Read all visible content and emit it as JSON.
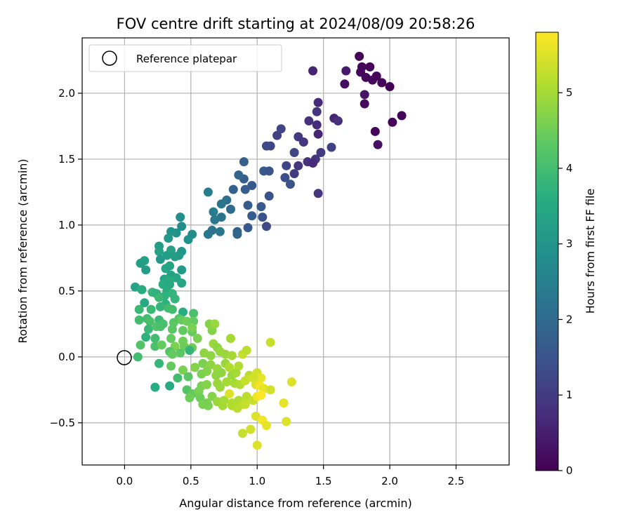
{
  "chart_data": {
    "type": "scatter",
    "title": "FOV centre drift starting at 2024/08/09 20:58:26",
    "xlabel": "Angular distance from reference (arcmin)",
    "ylabel": "Rotation from reference (arcmin)",
    "xlim": [
      -0.32,
      2.9
    ],
    "ylim": [
      -0.82,
      2.42
    ],
    "xticks": [
      0.0,
      0.5,
      1.0,
      1.5,
      2.0,
      2.5
    ],
    "xtick_labels": [
      "0.0",
      "0.5",
      "1.0",
      "1.5",
      "2.0",
      "2.5"
    ],
    "yticks": [
      -0.5,
      0.0,
      0.5,
      1.0,
      1.5,
      2.0
    ],
    "ytick_labels": [
      "−0.5",
      "0.0",
      "0.5",
      "1.0",
      "1.5",
      "2.0"
    ],
    "grid": true,
    "legend": {
      "placement": "upper-left",
      "entries": [
        {
          "label": "Reference platepar",
          "marker": "open-circle"
        }
      ]
    },
    "reference_point": {
      "x": 0.0,
      "y": 0.0
    },
    "colorbar": {
      "label": "Hours from first FF file",
      "colormap": "viridis",
      "range": [
        0,
        5.8
      ],
      "ticks": [
        0,
        1,
        2,
        3,
        4,
        5
      ],
      "tick_labels": [
        "0",
        "1",
        "2",
        "3",
        "4",
        "5"
      ]
    },
    "points": [
      [
        1.77,
        2.28,
        0.05
      ],
      [
        1.79,
        2.2,
        0.08
      ],
      [
        1.78,
        2.16,
        0.1
      ],
      [
        1.85,
        2.2,
        0.05
      ],
      [
        1.82,
        2.12,
        0.12
      ],
      [
        1.87,
        2.1,
        0.15
      ],
      [
        1.9,
        2.13,
        0.1
      ],
      [
        1.94,
        2.08,
        0.08
      ],
      [
        2.0,
        2.05,
        0.03
      ],
      [
        1.81,
        1.99,
        0.3
      ],
      [
        1.81,
        1.92,
        0.15
      ],
      [
        1.66,
        2.07,
        0.2
      ],
      [
        1.67,
        2.17,
        0.4
      ],
      [
        1.42,
        2.17,
        0.6
      ],
      [
        1.89,
        1.71,
        0.1
      ],
      [
        1.91,
        1.61,
        0.25
      ],
      [
        2.02,
        1.78,
        0.05
      ],
      [
        2.09,
        1.83,
        0.08
      ],
      [
        1.46,
        1.93,
        0.7
      ],
      [
        1.45,
        1.86,
        0.9
      ],
      [
        1.39,
        1.79,
        0.8
      ],
      [
        1.45,
        1.76,
        0.7
      ],
      [
        1.58,
        1.81,
        0.6
      ],
      [
        1.61,
        1.79,
        0.8
      ],
      [
        1.18,
        1.73,
        1.2
      ],
      [
        1.15,
        1.68,
        1.1
      ],
      [
        1.31,
        1.67,
        1.0
      ],
      [
        1.35,
        1.63,
        0.9
      ],
      [
        1.46,
        1.69,
        0.6
      ],
      [
        1.1,
        1.6,
        1.2
      ],
      [
        1.07,
        1.6,
        1.3
      ],
      [
        1.28,
        1.55,
        1.2
      ],
      [
        1.38,
        1.48,
        0.8
      ],
      [
        1.44,
        1.5,
        0.9
      ],
      [
        1.48,
        1.55,
        1.0
      ],
      [
        1.56,
        1.59,
        1.1
      ],
      [
        1.42,
        1.47,
        0.7
      ],
      [
        1.31,
        1.45,
        0.9
      ],
      [
        1.22,
        1.45,
        1.2
      ],
      [
        1.28,
        1.39,
        1.0
      ],
      [
        1.46,
        1.24,
        0.9
      ],
      [
        1.21,
        1.36,
        1.4
      ],
      [
        1.25,
        1.31,
        1.5
      ],
      [
        1.05,
        1.41,
        1.6
      ],
      [
        1.09,
        1.41,
        1.5
      ],
      [
        0.9,
        1.48,
        1.8
      ],
      [
        0.9,
        1.35,
        1.7
      ],
      [
        0.86,
        1.38,
        1.9
      ],
      [
        0.96,
        1.3,
        1.6
      ],
      [
        0.91,
        1.27,
        1.7
      ],
      [
        0.82,
        1.27,
        1.8
      ],
      [
        1.09,
        1.22,
        1.5
      ],
      [
        0.93,
        1.15,
        1.7
      ],
      [
        1.03,
        1.14,
        1.6
      ],
      [
        0.96,
        1.07,
        1.7
      ],
      [
        1.04,
        1.06,
        1.5
      ],
      [
        1.07,
        0.99,
        1.3
      ],
      [
        0.93,
        0.98,
        1.6
      ],
      [
        0.85,
        0.95,
        1.8
      ],
      [
        0.85,
        0.93,
        1.9
      ],
      [
        0.77,
        1.19,
        2.1
      ],
      [
        0.8,
        1.12,
        2.0
      ],
      [
        0.73,
        1.16,
        2.2
      ],
      [
        0.73,
        1.06,
        2.2
      ],
      [
        0.68,
        1.04,
        2.3
      ],
      [
        0.63,
        1.25,
        2.4
      ],
      [
        0.72,
        0.95,
        2.3
      ],
      [
        0.63,
        0.93,
        2.3
      ],
      [
        0.66,
        0.96,
        2.2
      ],
      [
        0.67,
        1.1,
        2.4
      ],
      [
        0.42,
        1.06,
        2.8
      ],
      [
        0.43,
        0.99,
        2.8
      ],
      [
        0.39,
        0.94,
        2.9
      ],
      [
        0.35,
        0.95,
        3.0
      ],
      [
        0.33,
        0.9,
        3.1
      ],
      [
        0.51,
        0.93,
        2.8
      ],
      [
        0.48,
        0.89,
        2.9
      ],
      [
        0.26,
        0.84,
        3.2
      ],
      [
        0.26,
        0.8,
        3.3
      ],
      [
        0.32,
        0.77,
        3.2
      ],
      [
        0.35,
        0.81,
        3.3
      ],
      [
        0.43,
        0.8,
        3.0
      ],
      [
        0.41,
        0.77,
        3.1
      ],
      [
        0.38,
        0.76,
        3.2
      ],
      [
        0.27,
        0.74,
        3.1
      ],
      [
        0.15,
        0.73,
        3.3
      ],
      [
        0.12,
        0.71,
        3.2
      ],
      [
        0.16,
        0.66,
        3.2
      ],
      [
        0.34,
        0.69,
        3.3
      ],
      [
        0.31,
        0.67,
        3.4
      ],
      [
        0.43,
        0.66,
        3.1
      ],
      [
        0.35,
        0.62,
        3.3
      ],
      [
        0.39,
        0.6,
        3.4
      ],
      [
        0.3,
        0.59,
        3.4
      ],
      [
        0.34,
        0.58,
        3.6
      ],
      [
        0.43,
        0.56,
        3.4
      ],
      [
        0.29,
        0.55,
        3.6
      ],
      [
        0.34,
        0.55,
        3.5
      ],
      [
        0.08,
        0.53,
        3.4
      ],
      [
        0.13,
        0.51,
        3.6
      ],
      [
        0.21,
        0.49,
        3.8
      ],
      [
        0.24,
        0.48,
        3.7
      ],
      [
        0.32,
        0.5,
        3.6
      ],
      [
        0.3,
        0.46,
        3.7
      ],
      [
        0.36,
        0.48,
        3.8
      ],
      [
        0.26,
        0.45,
        3.9
      ],
      [
        0.38,
        0.44,
        3.8
      ],
      [
        0.15,
        0.41,
        3.5
      ],
      [
        0.31,
        0.4,
        3.7
      ],
      [
        0.27,
        0.38,
        3.8
      ],
      [
        0.33,
        0.37,
        4.0
      ],
      [
        0.11,
        0.36,
        3.9
      ],
      [
        0.2,
        0.36,
        3.9
      ],
      [
        0.36,
        0.36,
        4.0
      ],
      [
        0.44,
        0.34,
        3.6
      ],
      [
        0.52,
        0.33,
        4.1
      ],
      [
        0.11,
        0.28,
        4.0
      ],
      [
        0.17,
        0.29,
        4.0
      ],
      [
        0.19,
        0.27,
        4.1
      ],
      [
        0.26,
        0.28,
        3.9
      ],
      [
        0.29,
        0.25,
        4.1
      ],
      [
        0.37,
        0.26,
        4.3
      ],
      [
        0.41,
        0.29,
        4.2
      ],
      [
        0.43,
        0.28,
        4.4
      ],
      [
        0.47,
        0.27,
        4.5
      ],
      [
        0.52,
        0.27,
        4.4
      ],
      [
        0.18,
        0.21,
        3.9
      ],
      [
        0.24,
        0.23,
        4.2
      ],
      [
        0.27,
        0.23,
        4.1
      ],
      [
        0.36,
        0.21,
        4.3
      ],
      [
        0.44,
        0.2,
        4.4
      ],
      [
        0.51,
        0.19,
        4.4
      ],
      [
        0.51,
        0.22,
        4.6
      ],
      [
        0.66,
        0.2,
        4.7
      ],
      [
        0.16,
        0.15,
        3.7
      ],
      [
        0.23,
        0.14,
        4.0
      ],
      [
        0.35,
        0.14,
        4.4
      ],
      [
        0.44,
        0.12,
        4.5
      ],
      [
        0.55,
        0.14,
        4.6
      ],
      [
        0.64,
        0.25,
        4.7
      ],
      [
        0.68,
        0.25,
        4.9
      ],
      [
        0.8,
        0.14,
        5.0
      ],
      [
        0.12,
        0.09,
        4.2
      ],
      [
        0.23,
        0.08,
        4.1
      ],
      [
        0.28,
        0.09,
        4.4
      ],
      [
        0.38,
        0.08,
        4.6
      ],
      [
        0.45,
        0.08,
        4.5
      ],
      [
        0.51,
        0.07,
        4.5
      ],
      [
        0.49,
        0.05,
        3.8
      ],
      [
        0.67,
        0.1,
        4.9
      ],
      [
        0.7,
        0.07,
        4.8
      ],
      [
        0.72,
        0.04,
        4.9
      ],
      [
        0.6,
        0.03,
        4.8
      ],
      [
        0.34,
        0.04,
        4.2
      ],
      [
        0.42,
        0.03,
        4.3
      ],
      [
        0.36,
        0.02,
        4.4
      ],
      [
        0.1,
        0.0,
        4.0
      ],
      [
        0.26,
        -0.05,
        3.8
      ],
      [
        0.35,
        -0.07,
        4.4
      ],
      [
        0.44,
        -0.1,
        4.6
      ],
      [
        0.53,
        -0.08,
        4.7
      ],
      [
        0.59,
        -0.05,
        4.6
      ],
      [
        0.65,
        0.01,
        4.8
      ],
      [
        0.76,
        0.02,
        4.9
      ],
      [
        0.81,
        0.01,
        5.0
      ],
      [
        0.89,
        0.02,
        5.3
      ],
      [
        0.92,
        0.05,
        5.2
      ],
      [
        1.1,
        0.11,
        5.3
      ],
      [
        0.65,
        -0.06,
        4.8
      ],
      [
        0.7,
        -0.09,
        4.9
      ],
      [
        0.76,
        -0.05,
        4.9
      ],
      [
        0.79,
        -0.08,
        5.1
      ],
      [
        0.86,
        -0.07,
        5.1
      ],
      [
        0.73,
        -0.12,
        4.8
      ],
      [
        0.81,
        -0.14,
        4.9
      ],
      [
        0.84,
        -0.12,
        5.0
      ],
      [
        0.94,
        -0.14,
        5.2
      ],
      [
        1.0,
        -0.12,
        5.4
      ],
      [
        1.03,
        -0.16,
        5.6
      ],
      [
        0.58,
        -0.13,
        4.6
      ],
      [
        0.62,
        -0.11,
        4.7
      ],
      [
        0.69,
        -0.14,
        4.8
      ],
      [
        0.48,
        -0.15,
        4.3
      ],
      [
        0.4,
        -0.16,
        4.0
      ],
      [
        0.23,
        -0.23,
        3.6
      ],
      [
        0.34,
        -0.22,
        3.5
      ],
      [
        0.47,
        -0.25,
        4.2
      ],
      [
        0.51,
        -0.28,
        4.4
      ],
      [
        0.56,
        -0.26,
        4.6
      ],
      [
        0.58,
        -0.22,
        4.6
      ],
      [
        0.62,
        -0.21,
        4.7
      ],
      [
        0.7,
        -0.2,
        4.9
      ],
      [
        0.72,
        -0.23,
        4.9
      ],
      [
        0.77,
        -0.19,
        5.0
      ],
      [
        0.83,
        -0.2,
        5.0
      ],
      [
        0.87,
        -0.21,
        5.1
      ],
      [
        0.91,
        -0.18,
        5.3
      ],
      [
        0.97,
        -0.16,
        5.4
      ],
      [
        0.99,
        -0.21,
        5.5
      ],
      [
        1.02,
        -0.22,
        5.7
      ],
      [
        1.05,
        -0.24,
        5.6
      ],
      [
        0.49,
        -0.31,
        4.5
      ],
      [
        0.57,
        -0.31,
        4.5
      ],
      [
        0.62,
        -0.35,
        4.6
      ],
      [
        0.66,
        -0.3,
        4.7
      ],
      [
        0.7,
        -0.34,
        4.9
      ],
      [
        0.75,
        -0.33,
        5.0
      ],
      [
        0.79,
        -0.28,
        5.5
      ],
      [
        0.81,
        -0.35,
        5.1
      ],
      [
        0.86,
        -0.33,
        5.1
      ],
      [
        0.89,
        -0.36,
        5.2
      ],
      [
        0.92,
        -0.3,
        5.2
      ],
      [
        0.97,
        -0.33,
        5.3
      ],
      [
        1.0,
        -0.3,
        5.7
      ],
      [
        1.03,
        -0.29,
        5.8
      ],
      [
        0.59,
        -0.36,
        4.6
      ],
      [
        0.63,
        -0.37,
        4.6
      ],
      [
        0.74,
        -0.37,
        5.0
      ],
      [
        0.81,
        -0.37,
        5.1
      ],
      [
        0.85,
        -0.39,
        5.2
      ],
      [
        0.91,
        -0.36,
        5.3
      ],
      [
        1.1,
        -0.25,
        5.4
      ],
      [
        1.2,
        -0.35,
        5.6
      ],
      [
        1.26,
        -0.19,
        5.5
      ],
      [
        0.99,
        -0.45,
        5.5
      ],
      [
        1.04,
        -0.48,
        5.7
      ],
      [
        1.07,
        -0.52,
        5.6
      ],
      [
        1.22,
        -0.49,
        5.5
      ],
      [
        0.95,
        -0.55,
        5.4
      ],
      [
        0.89,
        -0.58,
        5.3
      ],
      [
        1.0,
        -0.67,
        5.5
      ]
    ]
  }
}
